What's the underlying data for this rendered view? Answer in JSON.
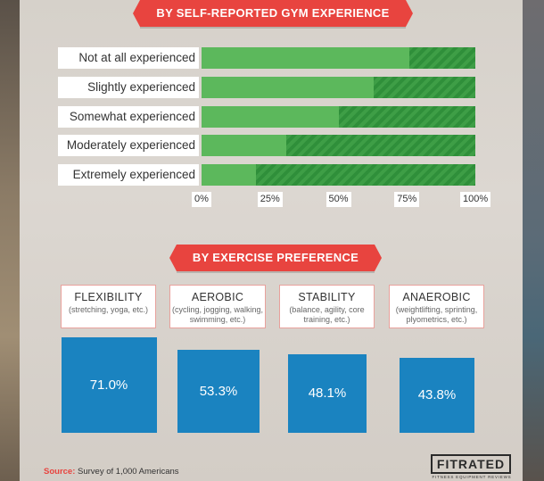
{
  "section1": {
    "title": "BY SELF-REPORTED GYM EXPERIENCE"
  },
  "section2": {
    "title": "BY EXERCISE PREFERENCE"
  },
  "colors": {
    "ribbon": "#e8443f",
    "bar_fill": "#5cb85c",
    "bar_remainder": "#2f8f3a",
    "box": "#1a83c0"
  },
  "chart_data": [
    {
      "type": "bar",
      "orientation": "horizontal",
      "stacked": true,
      "title": "BY SELF-REPORTED GYM EXPERIENCE",
      "categories": [
        "Not at all experienced",
        "Slightly experienced",
        "Somewhat experienced",
        "Moderately experienced",
        "Extremely experienced"
      ],
      "values": [
        76,
        63,
        50,
        31,
        20
      ],
      "xlim": [
        0,
        100
      ],
      "x_ticks": [
        "0%",
        "25%",
        "50%",
        "75%",
        "100%"
      ]
    },
    {
      "type": "bar",
      "title": "BY EXERCISE PREFERENCE",
      "categories": [
        "FLEXIBILITY",
        "AEROBIC",
        "STABILITY",
        "ANAEROBIC"
      ],
      "subtitles": [
        "(stretching, yoga, etc.)",
        "(cycling, jogging, walking, swimming, etc.)",
        "(balance, agility, core training, etc.)",
        "(weightlifting, sprinting, plyometrics, etc.)"
      ],
      "values": [
        71.0,
        53.3,
        48.1,
        43.8
      ],
      "value_labels": [
        "71.0%",
        "53.3%",
        "48.1%",
        "43.8%"
      ]
    }
  ],
  "footer": {
    "source_key": "Source:",
    "source_text": " Survey of 1,000 Americans",
    "logo": "FITRATED",
    "logo_sub": "FITNESS EQUIPMENT REVIEWS"
  }
}
